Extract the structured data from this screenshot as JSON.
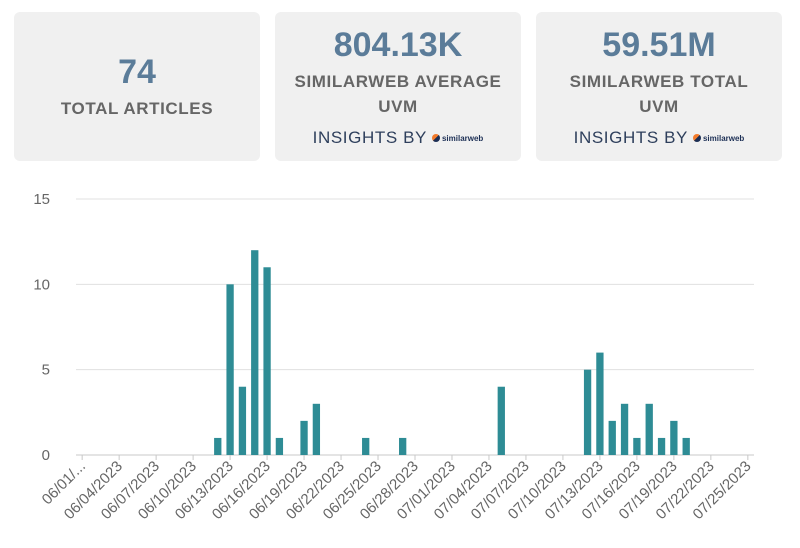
{
  "cards": [
    {
      "value": "74",
      "label": "TOTAL ARTICLES"
    },
    {
      "value": "804.13K",
      "label_line1": "SIMILARWEB AVERAGE",
      "label_line2": "UVM",
      "insights": "INSIGHTS BY",
      "brand": "similarweb"
    },
    {
      "value": "59.51M",
      "label_line1": "SIMILARWEB TOTAL",
      "label_line2": "UVM",
      "insights": "INSIGHTS BY",
      "brand": "similarweb"
    }
  ],
  "colors": {
    "bar": "#2e8c95",
    "card_bg": "#f0f0f0",
    "value": "#5b7c99",
    "grid": "#e0e0e0"
  },
  "chart_data": {
    "type": "bar",
    "title": "",
    "xlabel": "",
    "ylabel": "",
    "ylim": [
      0,
      15
    ],
    "yticks": [
      0,
      5,
      10,
      15
    ],
    "grid": true,
    "x_tick_labels": [
      "06/01/...",
      "06/04/2023",
      "06/07/2023",
      "06/10/2023",
      "06/13/2023",
      "06/16/2023",
      "06/19/2023",
      "06/22/2023",
      "06/25/2023",
      "06/28/2023",
      "07/01/2023",
      "07/04/2023",
      "07/07/2023",
      "07/10/2023",
      "07/13/2023",
      "07/16/2023",
      "07/19/2023",
      "07/22/2023",
      "07/25/2023"
    ],
    "x": [
      "06/01/2023",
      "06/02/2023",
      "06/03/2023",
      "06/04/2023",
      "06/05/2023",
      "06/06/2023",
      "06/07/2023",
      "06/08/2023",
      "06/09/2023",
      "06/10/2023",
      "06/11/2023",
      "06/12/2023",
      "06/13/2023",
      "06/14/2023",
      "06/15/2023",
      "06/16/2023",
      "06/17/2023",
      "06/18/2023",
      "06/19/2023",
      "06/20/2023",
      "06/21/2023",
      "06/22/2023",
      "06/23/2023",
      "06/24/2023",
      "06/25/2023",
      "06/26/2023",
      "06/27/2023",
      "06/28/2023",
      "06/29/2023",
      "06/30/2023",
      "07/01/2023",
      "07/02/2023",
      "07/03/2023",
      "07/04/2023",
      "07/05/2023",
      "07/06/2023",
      "07/07/2023",
      "07/08/2023",
      "07/09/2023",
      "07/10/2023",
      "07/11/2023",
      "07/12/2023",
      "07/13/2023",
      "07/14/2023",
      "07/15/2023",
      "07/16/2023",
      "07/17/2023",
      "07/18/2023",
      "07/19/2023",
      "07/20/2023",
      "07/21/2023",
      "07/22/2023",
      "07/23/2023",
      "07/24/2023",
      "07/25/2023"
    ],
    "values": [
      0,
      0,
      0,
      0,
      0,
      0,
      0,
      0,
      0,
      0,
      0,
      1,
      10,
      4,
      12,
      11,
      1,
      0,
      2,
      3,
      0,
      0,
      0,
      1,
      0,
      0,
      1,
      0,
      0,
      0,
      0,
      0,
      0,
      0,
      4,
      0,
      0,
      0,
      0,
      0,
      0,
      5,
      6,
      2,
      3,
      1,
      3,
      1,
      2,
      1,
      0,
      0,
      0,
      0,
      0
    ]
  }
}
